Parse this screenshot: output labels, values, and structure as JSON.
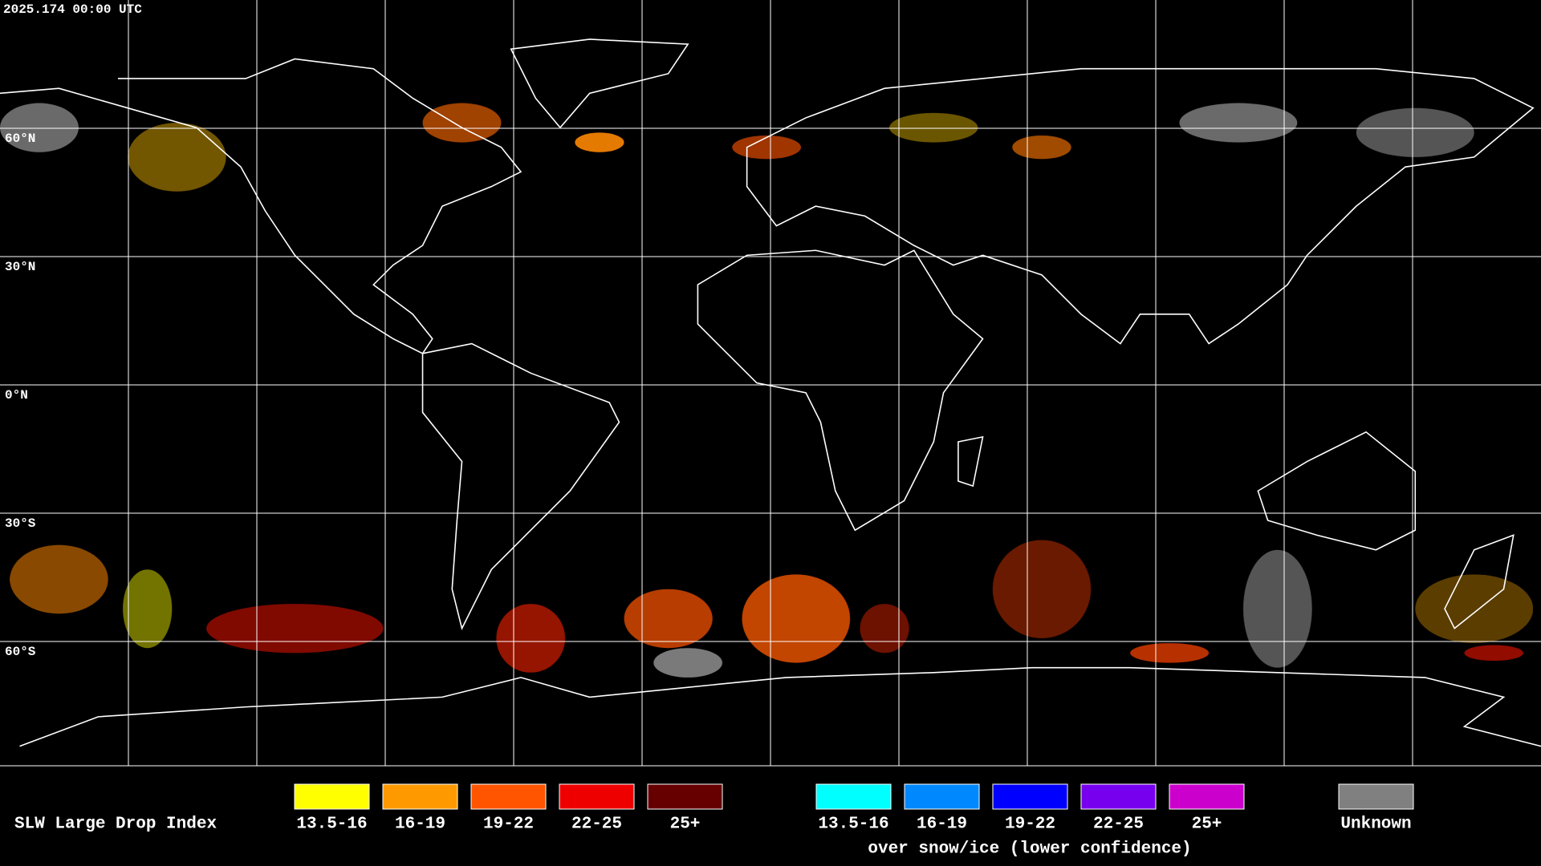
{
  "header": {
    "timestamp": "2025.174 00:00 UTC"
  },
  "grid": {
    "lat_labels": [
      "60°N",
      "30°N",
      "0°N",
      "30°S",
      "60°S"
    ]
  },
  "legend": {
    "title": "SLW Large Drop Index",
    "groups": [
      {
        "items": [
          {
            "label": "13.5-16",
            "color": "#ffff00"
          },
          {
            "label": "16-19",
            "color": "#ff9900"
          },
          {
            "label": "19-22",
            "color": "#ff5500"
          },
          {
            "label": "22-25",
            "color": "#ee0000"
          },
          {
            "label": "25+",
            "color": "#660000"
          }
        ]
      },
      {
        "caption": "over snow/ice (lower confidence)",
        "items": [
          {
            "label": "13.5-16",
            "color": "#00ffff"
          },
          {
            "label": "16-19",
            "color": "#0088ff"
          },
          {
            "label": "19-22",
            "color": "#0000ff"
          },
          {
            "label": "22-25",
            "color": "#7700ee"
          },
          {
            "label": "25+",
            "color": "#cc00cc"
          }
        ]
      }
    ],
    "unknown": {
      "label": "Unknown",
      "color": "#808080"
    }
  }
}
